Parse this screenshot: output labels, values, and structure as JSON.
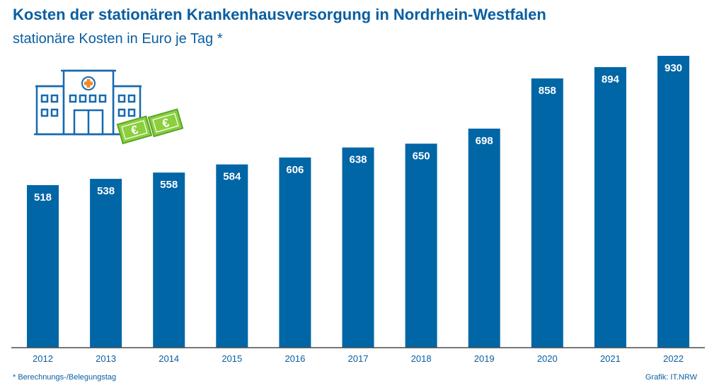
{
  "title": "Kosten der stationären Krankenhausversorgung in Nordrhein-Westfalen",
  "subtitle": "stationäre Kosten in Euro je Tag *",
  "footnote": "* Berechnungs-/Belegungstag",
  "source": "Grafik: IT.NRW",
  "colors": {
    "bar": "#0066a6",
    "text": "#0a5ea0",
    "axis": "#4a4a4a",
    "icon_stroke": "#1769b0",
    "money_fill": "#8ccf3e",
    "money_stroke": "#5aa52a",
    "cross": "#f08a24"
  },
  "icons": [
    "hospital-icon",
    "euro-banknote-icon"
  ],
  "chart_data": {
    "type": "bar",
    "categories": [
      "2012",
      "2013",
      "2014",
      "2015",
      "2016",
      "2017",
      "2018",
      "2019",
      "2020",
      "2021",
      "2022"
    ],
    "values": [
      518,
      538,
      558,
      584,
      606,
      638,
      650,
      698,
      858,
      894,
      930
    ],
    "title": "Kosten der stationären Krankenhausversorgung in Nordrhein-Westfalen",
    "subtitle": "stationäre Kosten in Euro je Tag *",
    "xlabel": "",
    "ylabel": "",
    "ylim": [
      0,
      930
    ],
    "grid": false,
    "data_labels": true
  }
}
